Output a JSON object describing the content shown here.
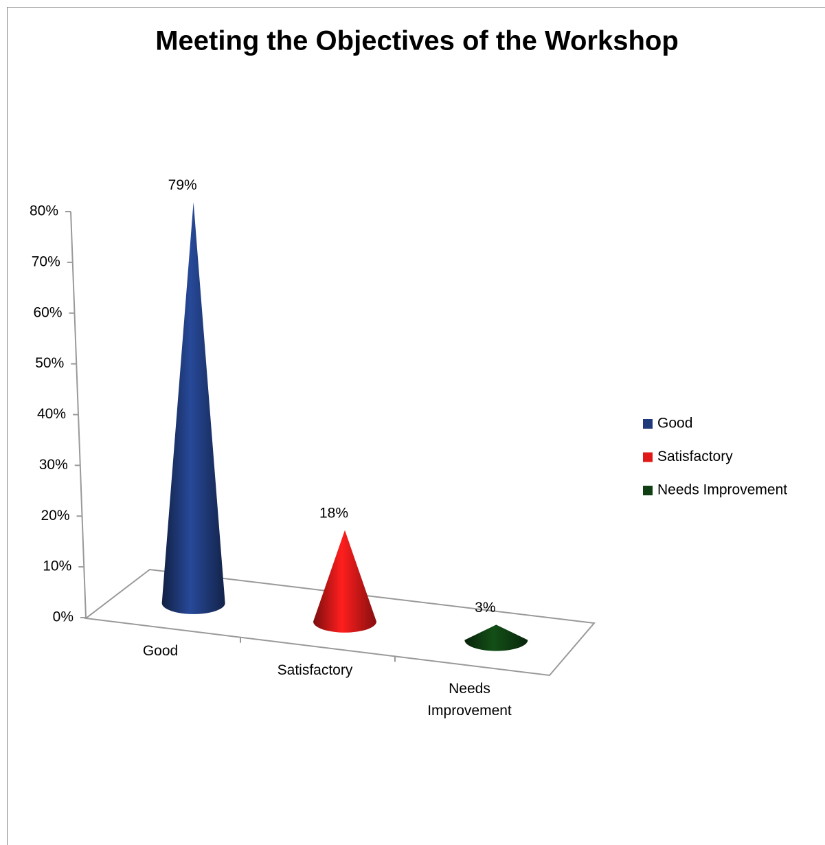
{
  "chart_data": {
    "type": "cone",
    "title": "Meeting the Objectives of the Workshop",
    "categories": [
      "Good",
      "Satisfactory",
      "Needs Improvement"
    ],
    "values": [
      79,
      18,
      3
    ],
    "value_labels": [
      "79%",
      "18%",
      "3%"
    ],
    "colors": [
      "#1f3a7a",
      "#e01818",
      "#0f3f12"
    ],
    "ylim": [
      0,
      80
    ],
    "yticks": [
      {
        "value": 0,
        "label": "0%"
      },
      {
        "value": 10,
        "label": "10%"
      },
      {
        "value": 20,
        "label": "20%"
      },
      {
        "value": 30,
        "label": "30%"
      },
      {
        "value": 40,
        "label": "40%"
      },
      {
        "value": 50,
        "label": "50%"
      },
      {
        "value": 60,
        "label": "60%"
      },
      {
        "value": 70,
        "label": "70%"
      },
      {
        "value": 80,
        "label": "80%"
      }
    ],
    "legend": "right"
  }
}
